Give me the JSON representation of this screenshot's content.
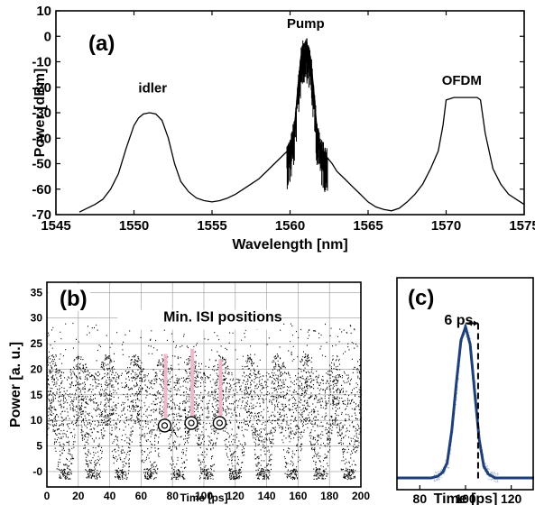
{
  "chart_data": [
    {
      "type": "line",
      "panel": "(a)",
      "xlabel": "Wavelength [nm]",
      "ylabel": "Power [dBm]",
      "xlim": [
        1545,
        1575
      ],
      "ylim": [
        -70,
        10
      ],
      "xticks": [
        1545,
        1550,
        1555,
        1560,
        1565,
        1570,
        1575
      ],
      "yticks": [
        10,
        0,
        -10,
        -20,
        -30,
        -40,
        -50,
        -60,
        -70
      ],
      "grid": false,
      "annotations": [
        {
          "text": "idler",
          "x": 1551.2,
          "y": -22
        },
        {
          "text": "Pump",
          "x": 1561,
          "y": 4
        },
        {
          "text": "OFDM",
          "x": 1571,
          "y": -19
        }
      ],
      "series": [
        {
          "x": [
            1546.5,
            1547,
            1547.5,
            1548,
            1548.5,
            1549,
            1549.5,
            1550,
            1550.3,
            1550.6,
            1551,
            1551.4,
            1551.8,
            1552.2,
            1552.6,
            1553,
            1553.5,
            1554,
            1554.5,
            1555,
            1555.5,
            1556,
            1556.5,
            1557,
            1557.5,
            1558,
            1558.5,
            1559,
            1559.5,
            1560,
            1560.3,
            1560.5,
            1560.7,
            1561,
            1561.3,
            1561.5,
            1561.7,
            1562,
            1562.3,
            1562.7,
            1563,
            1563.5,
            1564,
            1564.5,
            1565,
            1565.5,
            1566,
            1566.5,
            1567,
            1567.5,
            1568,
            1568.5,
            1569,
            1569.5,
            1569.8,
            1570,
            1570.5,
            1571,
            1571.5,
            1572,
            1572.2,
            1572.5,
            1573,
            1573.5,
            1574,
            1574.5,
            1575
          ],
          "y": [
            -69,
            -67.5,
            -66,
            -64,
            -60,
            -54,
            -44,
            -35,
            -32,
            -30.5,
            -30,
            -30.5,
            -33,
            -40,
            -50,
            -57,
            -61,
            -63.5,
            -64.5,
            -65,
            -64.5,
            -63.5,
            -62,
            -60,
            -58,
            -56,
            -53,
            -50,
            -47,
            -44,
            -35,
            -20,
            -8,
            -2,
            -8,
            -20,
            -35,
            -44,
            -47,
            -50,
            -53,
            -56,
            -59,
            -62,
            -65,
            -67,
            -68,
            -68.5,
            -67.5,
            -65,
            -62,
            -58,
            -52,
            -45,
            -35,
            -25,
            -24,
            -24,
            -24,
            -24,
            -25,
            -38,
            -52,
            -58,
            -62,
            -64,
            -66
          ]
        }
      ]
    },
    {
      "type": "scatter",
      "panel": "(b)",
      "xlabel": "Time [ps]",
      "ylabel": "Power [a. u.]",
      "xlim": [
        0,
        200
      ],
      "ylim": [
        -3,
        37
      ],
      "xticks": [
        0,
        20,
        40,
        60,
        80,
        100,
        120,
        140,
        160,
        180,
        200
      ],
      "yticks": [
        0,
        5,
        10,
        15,
        20,
        25,
        30,
        35
      ],
      "ytick_labels": [
        "-0",
        "5",
        "10",
        "15",
        "20",
        "25",
        "30",
        "35"
      ],
      "grid": true,
      "annotations": [
        {
          "text": "Min. ISI positions",
          "x": 112,
          "y": 30
        }
      ],
      "markers": [
        {
          "x": 75,
          "y": 9,
          "line_top": 23
        },
        {
          "x": 92,
          "y": 9.5,
          "line_top": 24
        },
        {
          "x": 110,
          "y": 9.5,
          "line_top": 22
        }
      ]
    },
    {
      "type": "line",
      "panel": "(c)",
      "xlabel": "Time [ps]",
      "xlim": [
        70,
        130
      ],
      "xticks": [
        80,
        100,
        120
      ],
      "grid": false,
      "annotations": [
        {
          "text": "6 ps",
          "x": 97,
          "y": 0.86
        }
      ],
      "series": [
        {
          "x": [
            70,
            85,
            88,
            90,
            92,
            94,
            96,
            98,
            100,
            102,
            104,
            106,
            108,
            110,
            113,
            130
          ],
          "y": [
            0,
            0,
            0.01,
            0.03,
            0.08,
            0.25,
            0.5,
            0.72,
            0.79,
            0.7,
            0.45,
            0.2,
            0.06,
            0.02,
            0,
            0
          ]
        }
      ]
    }
  ]
}
